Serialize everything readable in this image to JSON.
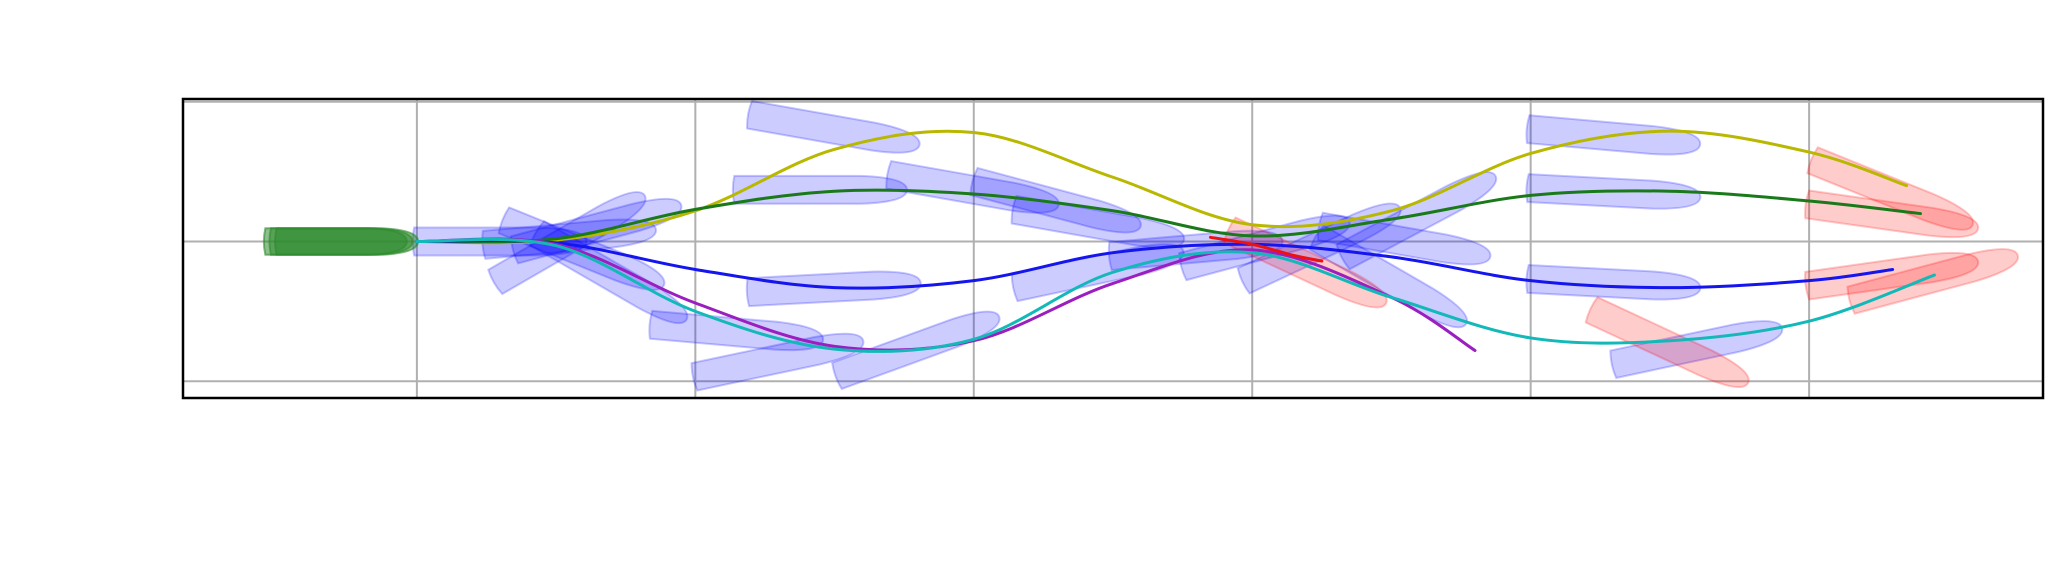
{
  "chart_data": {
    "type": "line",
    "title": "",
    "xlabel": "",
    "ylabel": "",
    "xlim": [
      -0.84,
      5.84
    ],
    "ylim": [
      -1.12,
      1.02
    ],
    "xticks": [
      0,
      1,
      2,
      3,
      4,
      5
    ],
    "yticks": [
      -1,
      0,
      1
    ],
    "grid": true,
    "start_ship": {
      "x": -0.27,
      "y": 0.0,
      "color": "#2e8b2e"
    },
    "series": [
      {
        "color": "#b8b800",
        "x": [
          0,
          0.5,
          1,
          1.5,
          2,
          2.5,
          3,
          3.5,
          4,
          4.5,
          5,
          5.35
        ],
        "y": [
          0,
          0.01,
          0.22,
          0.66,
          0.78,
          0.46,
          0.12,
          0.22,
          0.63,
          0.79,
          0.64,
          0.4
        ]
      },
      {
        "color": "#1a7a1a",
        "x": [
          0,
          0.5,
          1,
          1.5,
          2,
          2.5,
          3,
          3.5,
          4,
          4.5,
          5,
          5.4
        ],
        "y": [
          0,
          0.02,
          0.23,
          0.36,
          0.34,
          0.22,
          0.04,
          0.16,
          0.33,
          0.36,
          0.29,
          0.2
        ]
      },
      {
        "color": "#1515ee",
        "x": [
          0,
          0.5,
          1,
          1.5,
          2,
          2.5,
          3,
          3.5,
          4,
          4.5,
          5,
          5.3
        ],
        "y": [
          0,
          -0.01,
          -0.2,
          -0.33,
          -0.28,
          -0.08,
          -0.02,
          -0.11,
          -0.28,
          -0.33,
          -0.28,
          -0.2
        ]
      },
      {
        "color": "#9b1ebe",
        "x": [
          0,
          0.5,
          1,
          1.5,
          2,
          2.5,
          3,
          3.5,
          3.8
        ],
        "y": [
          0,
          -0.02,
          -0.44,
          -0.75,
          -0.71,
          -0.3,
          -0.06,
          -0.4,
          -0.78
        ]
      },
      {
        "color": "#13b8b8",
        "x": [
          0,
          0.5,
          1,
          1.5,
          2,
          2.5,
          3,
          3.5,
          4,
          4.5,
          5,
          5.45
        ],
        "y": [
          0,
          -0.03,
          -0.5,
          -0.77,
          -0.7,
          -0.22,
          -0.08,
          -0.4,
          -0.69,
          -0.71,
          -0.57,
          -0.24
        ]
      },
      {
        "color": "#ee1111",
        "x": [
          2.85,
          3.0,
          3.15,
          3.25
        ],
        "y": [
          0.03,
          -0.02,
          -0.1,
          -0.14
        ]
      }
    ],
    "ship_outlines": {
      "blue": [
        [
          0.3,
          0.0,
          0
        ],
        [
          0.55,
          0.03,
          5
        ],
        [
          0.55,
          0.02,
          30
        ],
        [
          0.65,
          0.1,
          15
        ],
        [
          0.6,
          -0.08,
          -22
        ],
        [
          0.7,
          -0.25,
          -30
        ],
        [
          1.45,
          0.37,
          0
        ],
        [
          1.5,
          0.8,
          -10
        ],
        [
          2.0,
          0.37,
          -10
        ],
        [
          2.3,
          0.27,
          -15
        ],
        [
          2.45,
          0.12,
          -10
        ],
        [
          2.45,
          -0.2,
          12
        ],
        [
          2.8,
          -0.05,
          5
        ],
        [
          1.5,
          -0.33,
          3
        ],
        [
          1.15,
          -0.65,
          -5
        ],
        [
          1.3,
          -0.84,
          12
        ],
        [
          1.8,
          -0.75,
          20
        ],
        [
          3.6,
          0.18,
          28
        ],
        [
          3.25,
          -0.02,
          25
        ],
        [
          3.05,
          -0.02,
          15
        ],
        [
          3.5,
          -0.28,
          -30
        ],
        [
          3.55,
          0.0,
          -10
        ],
        [
          4.3,
          0.75,
          -5
        ],
        [
          4.3,
          0.35,
          -3
        ],
        [
          4.3,
          -0.3,
          -3
        ],
        [
          4.6,
          -0.75,
          12
        ]
      ],
      "red": [
        [
          5.3,
          0.35,
          -22
        ],
        [
          5.3,
          0.18,
          -8
        ],
        [
          5.3,
          -0.23,
          8
        ],
        [
          5.45,
          -0.26,
          15
        ],
        [
          4.5,
          -0.75,
          -25
        ],
        [
          3.2,
          -0.18,
          -25
        ]
      ]
    }
  }
}
